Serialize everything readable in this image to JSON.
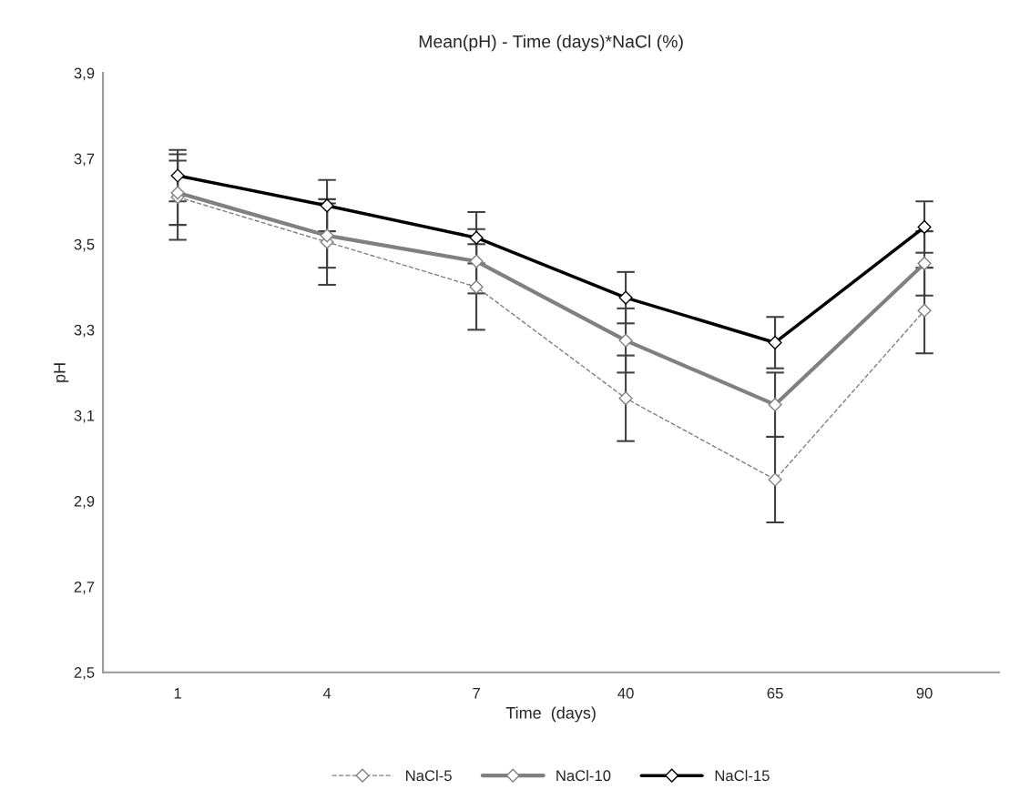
{
  "chart_data": {
    "type": "line",
    "title": "Mean(pH) - Time (days)*NaCl (%)",
    "xlabel": "Time  (days)",
    "ylabel": "pH",
    "categories": [
      "1",
      "4",
      "7",
      "40",
      "65",
      "90"
    ],
    "series": [
      {
        "name": "NaCl-5",
        "color": "#7f7f7f",
        "line_style": "dashed",
        "values": [
          3.61,
          3.505,
          3.4,
          3.14,
          2.95,
          3.345
        ],
        "errors": [
          0.1,
          0.1,
          0.1,
          0.1,
          0.1,
          0.1
        ]
      },
      {
        "name": "NaCl-10",
        "color": "#808080",
        "line_style": "solid",
        "values": [
          3.62,
          3.52,
          3.46,
          3.275,
          3.125,
          3.455
        ],
        "errors": [
          0.075,
          0.075,
          0.075,
          0.075,
          0.075,
          0.075
        ]
      },
      {
        "name": "NaCl-15",
        "color": "#000000",
        "line_style": "solid",
        "values": [
          3.66,
          3.59,
          3.515,
          3.375,
          3.27,
          3.54
        ],
        "errors": [
          0.06,
          0.06,
          0.06,
          0.06,
          0.06,
          0.06
        ]
      }
    ],
    "ylim": [
      2.5,
      3.9
    ],
    "yticks": [
      {
        "value": 2.5,
        "label": "2,5"
      },
      {
        "value": 2.7,
        "label": "2,7"
      },
      {
        "value": 2.9,
        "label": "2,9"
      },
      {
        "value": 3.1,
        "label": "3,1"
      },
      {
        "value": 3.3,
        "label": "3,3"
      },
      {
        "value": 3.5,
        "label": "3,5"
      },
      {
        "value": 3.7,
        "label": "3,7"
      },
      {
        "value": 3.9,
        "label": "3,9"
      }
    ],
    "marker": "diamond",
    "grid": false,
    "legend": "bottom"
  }
}
